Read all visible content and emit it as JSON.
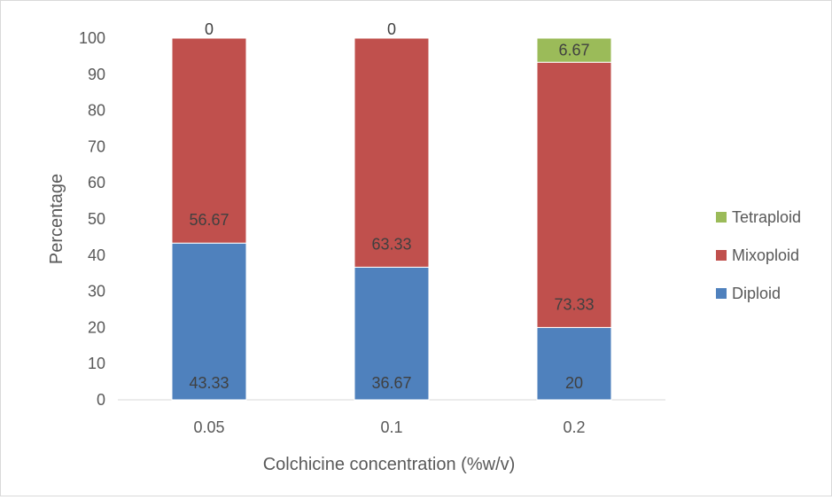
{
  "chart_data": {
    "type": "bar",
    "stacked": true,
    "categories": [
      "0.05",
      "0.1",
      "0.2"
    ],
    "series": [
      {
        "name": "Diploid",
        "values": [
          43.33,
          36.67,
          20
        ],
        "labels": [
          "43.33",
          "36.67",
          "20"
        ],
        "color": "#4f81bd"
      },
      {
        "name": "Mixoploid",
        "values": [
          56.67,
          63.33,
          73.33
        ],
        "labels": [
          "56.67",
          "63.33",
          "73.33"
        ],
        "color": "#c0504d"
      },
      {
        "name": "Tetraploid",
        "values": [
          0,
          0,
          6.67
        ],
        "labels": [
          "0",
          "0",
          "6.67"
        ],
        "color": "#9bbb59"
      }
    ],
    "xlabel": "Colchicine concentration (%w/v)",
    "ylabel": "Percentage",
    "ylim": [
      0,
      100
    ],
    "yticks": [
      0,
      10,
      20,
      30,
      40,
      50,
      60,
      70,
      80,
      90,
      100
    ],
    "grid": false,
    "legend_position": "right"
  }
}
